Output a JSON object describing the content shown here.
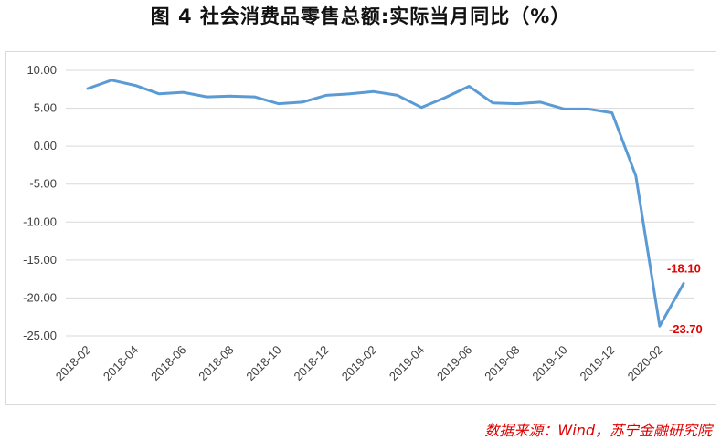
{
  "title": "图 4  社会消费品零售总额:实际当月同比（%）",
  "source": "数据来源：Wind，苏宁金融研究院",
  "colors": {
    "line": "#5b9bd5",
    "label": "#e00000",
    "source": "#e00000",
    "grid": "#d9d9d9"
  },
  "chart_data": {
    "type": "line",
    "title": "图 4  社会消费品零售总额:实际当月同比（%）",
    "xlabel": "",
    "ylabel": "",
    "ylim": [
      -25,
      10
    ],
    "yticks": [
      "10.00",
      "5.00",
      "0.00",
      "-5.00",
      "-10.00",
      "-15.00",
      "-20.00",
      "-25.00"
    ],
    "grid": true,
    "legend": "none",
    "x": [
      "2018-02",
      "2018-03",
      "2018-04",
      "2018-05",
      "2018-06",
      "2018-07",
      "2018-08",
      "2018-09",
      "2018-10",
      "2018-11",
      "2018-12",
      "2019-01",
      "2019-02",
      "2019-03",
      "2019-04",
      "2019-05",
      "2019-06",
      "2019-07",
      "2019-08",
      "2019-09",
      "2019-10",
      "2019-11",
      "2019-12",
      "2020-01",
      "2020-02",
      "2020-03"
    ],
    "xtick_labels": [
      "2018-02",
      "2018-04",
      "2018-06",
      "2018-08",
      "2018-10",
      "2018-12",
      "2019-02",
      "2019-04",
      "2019-06",
      "2019-08",
      "2019-10",
      "2019-12",
      "2020-02"
    ],
    "series": [
      {
        "values": [
          7.6,
          8.7,
          8.0,
          6.9,
          7.1,
          6.5,
          6.6,
          6.5,
          5.6,
          5.8,
          6.7,
          6.9,
          7.2,
          6.7,
          5.1,
          6.4,
          7.9,
          5.7,
          5.6,
          5.8,
          4.9,
          4.9,
          4.4,
          -3.9,
          -23.7,
          -18.1
        ]
      }
    ],
    "data_labels": [
      {
        "text": "-18.10",
        "index": 25
      },
      {
        "text": "-23.70",
        "index": 24
      }
    ]
  }
}
